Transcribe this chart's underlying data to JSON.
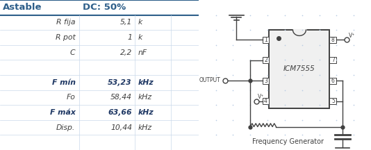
{
  "title_left": "Astable",
  "title_right": "DC: 50%",
  "header_color": "#2E5F8A",
  "table_rows": [
    {
      "label": "R fija",
      "value": "5,1",
      "unit": "k",
      "bold": false
    },
    {
      "label": "R pot",
      "value": "1",
      "unit": "k",
      "bold": false
    },
    {
      "label": "C",
      "value": "2,2",
      "unit": "nF",
      "bold": false
    },
    {
      "label": "",
      "value": "",
      "unit": "",
      "bold": false
    },
    {
      "label": "F mín",
      "value": "53,23",
      "unit": "kHz",
      "bold": true
    },
    {
      "label": "Fo",
      "value": "58,44",
      "unit": "kHz",
      "bold": false
    },
    {
      "label": "F máx",
      "value": "63,66",
      "unit": "kHz",
      "bold": true
    },
    {
      "label": "Disp.",
      "value": "10,44",
      "unit": "kHz",
      "bold": false
    },
    {
      "label": "",
      "value": "",
      "unit": "",
      "bold": false
    }
  ],
  "grid_color": "#C9D9EA",
  "label_color": "#404040",
  "bold_color": "#1F3864",
  "circuit_label": "Frequency Generator",
  "bg": "#FFFFFF",
  "line_color": "#404040",
  "chip_face": "#F0F0F0",
  "dot_color": "#B8CCE4"
}
